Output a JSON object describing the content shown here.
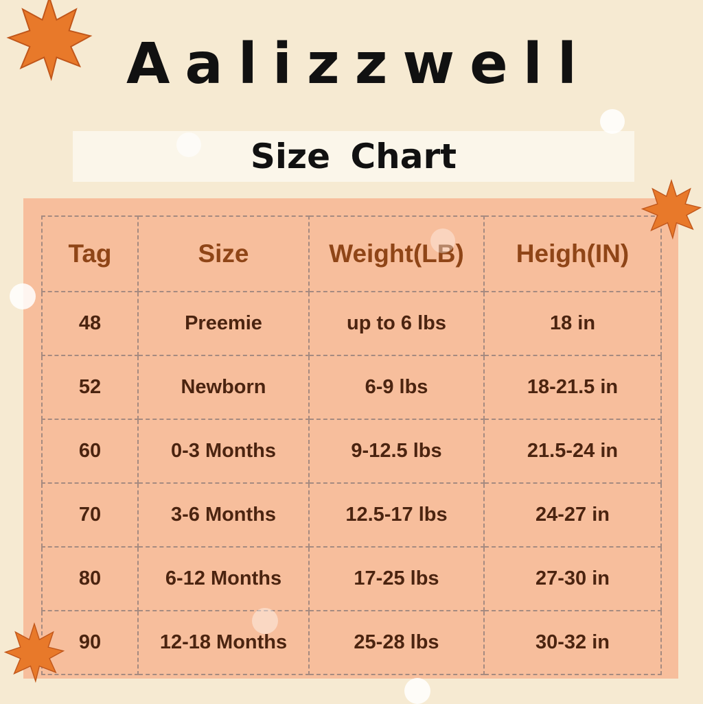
{
  "brand": "Aalizzwell",
  "subtitle": "Size  Chart",
  "table": {
    "headers": [
      "Tag",
      "Size",
      "Weight(LB)",
      "Heigh(IN)"
    ],
    "rows": [
      [
        "48",
        "Preemie",
        "up to 6 lbs",
        "18 in"
      ],
      [
        "52",
        "Newborn",
        "6-9 lbs",
        "18-21.5 in"
      ],
      [
        "60",
        "0-3 Months",
        "9-12.5 lbs",
        "21.5-24 in"
      ],
      [
        "70",
        "3-6 Months",
        "12.5-17 lbs",
        "24-27 in"
      ],
      [
        "80",
        "6-12 Months",
        "17-25 lbs",
        "27-30 in"
      ],
      [
        "90",
        "12-18 Months",
        "25-28 lbs",
        "30-32 in"
      ]
    ]
  },
  "colors": {
    "background": "#f6ead2",
    "panel": "#f7be9c",
    "header_text": "#8f4517",
    "body_text": "#4b2410",
    "leaf": "#e8792a"
  }
}
